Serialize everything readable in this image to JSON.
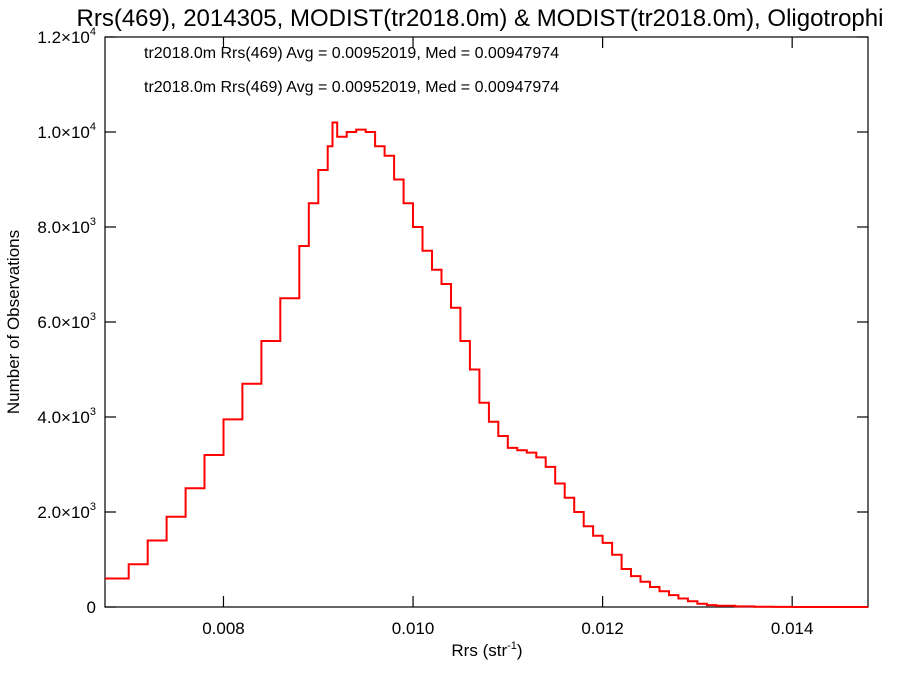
{
  "chart_data": {
    "type": "line",
    "title": "Rrs(469), 2014305, MODIST(tr2018.0m) & MODIST(tr2018.0m), Oligotrophi",
    "xlabel": "Rrs (str",
    "xlabel_sup": "-1",
    "xlabel_suffix": ")",
    "ylabel": "Number of Observations",
    "xlim": [
      0.00675,
      0.0148
    ],
    "ylim": [
      0,
      12000
    ],
    "x_ticks": [
      {
        "value": 0.008,
        "label": "0.008"
      },
      {
        "value": 0.01,
        "label": "0.010"
      },
      {
        "value": 0.012,
        "label": "0.012"
      },
      {
        "value": 0.014,
        "label": "0.014"
      }
    ],
    "y_ticks": [
      {
        "value": 0,
        "mant": "0",
        "exp": ""
      },
      {
        "value": 2000,
        "mant": "2.0×10",
        "exp": "3"
      },
      {
        "value": 4000,
        "mant": "4.0×10",
        "exp": "3"
      },
      {
        "value": 6000,
        "mant": "6.0×10",
        "exp": "3"
      },
      {
        "value": 8000,
        "mant": "8.0×10",
        "exp": "3"
      },
      {
        "value": 10000,
        "mant": "1.0×10",
        "exp": "4"
      },
      {
        "value": 12000,
        "mant": "1.2×10",
        "exp": "4"
      }
    ],
    "grid": false,
    "legend_placement": "top-left",
    "legend": [
      {
        "text": "tr2018.0m Rrs(469) Avg = 0.00952019, Med = 0.00947974",
        "color": "#000000"
      },
      {
        "text": "tr2018.0m Rrs(469) Avg = 0.00952019, Med = 0.00947974",
        "color": "#ff0000"
      }
    ],
    "series": [
      {
        "color": "#ff0000",
        "step": true,
        "x": [
          0.00675,
          0.007,
          0.0072,
          0.0074,
          0.0076,
          0.0078,
          0.008,
          0.0082,
          0.0084,
          0.0086,
          0.0088,
          0.0089,
          0.009,
          0.0091,
          0.00915,
          0.0092,
          0.0093,
          0.0094,
          0.0095,
          0.0096,
          0.0097,
          0.0098,
          0.0099,
          0.01,
          0.0101,
          0.0102,
          0.0103,
          0.0104,
          0.0105,
          0.0106,
          0.0107,
          0.0108,
          0.0109,
          0.011,
          0.0111,
          0.0112,
          0.0113,
          0.0114,
          0.0115,
          0.0116,
          0.0117,
          0.0118,
          0.0119,
          0.012,
          0.0121,
          0.0122,
          0.0123,
          0.0124,
          0.0125,
          0.0126,
          0.0127,
          0.0128,
          0.0129,
          0.013,
          0.0131,
          0.0132,
          0.0134,
          0.0136,
          0.0138,
          0.014,
          0.0142,
          0.0144,
          0.0146,
          0.0148
        ],
        "y": [
          600,
          900,
          1400,
          1900,
          2500,
          3200,
          3950,
          4700,
          5600,
          6500,
          7600,
          8500,
          9200,
          9700,
          10200,
          9900,
          10000,
          10050,
          10000,
          9700,
          9500,
          9000,
          8500,
          8000,
          7500,
          7100,
          6800,
          6300,
          5600,
          5000,
          4300,
          3900,
          3600,
          3350,
          3300,
          3250,
          3150,
          2950,
          2600,
          2300,
          2000,
          1700,
          1500,
          1350,
          1100,
          800,
          650,
          530,
          420,
          330,
          250,
          180,
          120,
          70,
          40,
          25,
          12,
          6,
          3,
          1,
          0,
          0,
          0,
          0
        ]
      }
    ]
  }
}
